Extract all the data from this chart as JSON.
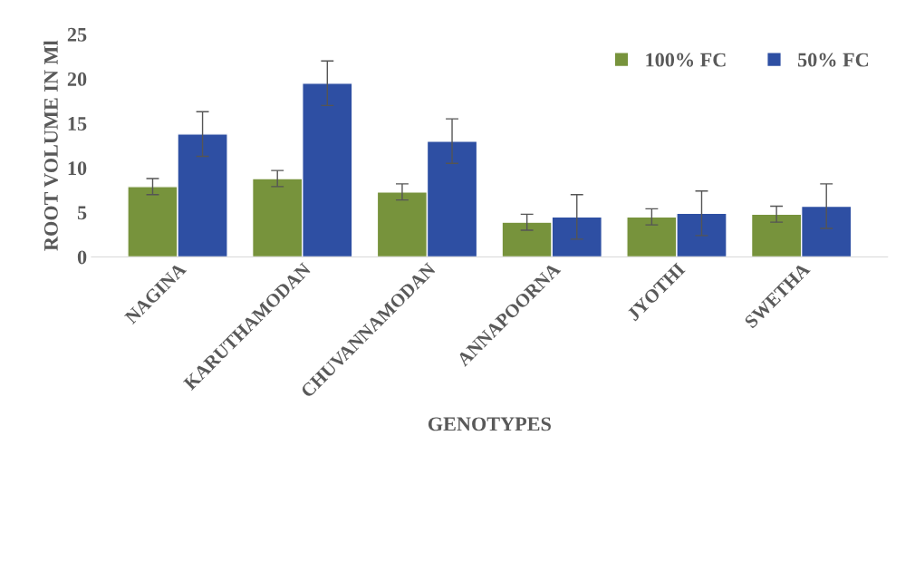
{
  "chart_data": {
    "type": "bar",
    "categories": [
      "NAGINA",
      "KARUTHAMODAN",
      "CHUVANNAMODAN",
      "ANNAPOORNA",
      "JYOTHI",
      "SWETHA"
    ],
    "series": [
      {
        "name": "100% FC",
        "color": "#77933c",
        "values": [
          7.9,
          8.8,
          7.3,
          3.9,
          4.5,
          4.8
        ],
        "errors": [
          0.9,
          0.9,
          0.9,
          0.9,
          0.9,
          0.9
        ]
      },
      {
        "name": "50% FC",
        "color": "#2e4fa3",
        "values": [
          13.8,
          19.5,
          13.0,
          4.5,
          4.9,
          5.7
        ],
        "errors": [
          2.5,
          2.5,
          2.5,
          2.5,
          2.5,
          2.5
        ]
      }
    ],
    "xlabel": "GENOTYPES",
    "ylabel": "ROOT VOLUME IN Ml",
    "ylim": [
      0,
      25
    ],
    "yticks": [
      0,
      5,
      10,
      15,
      20,
      25
    ],
    "grid": false,
    "legend": "top right"
  }
}
